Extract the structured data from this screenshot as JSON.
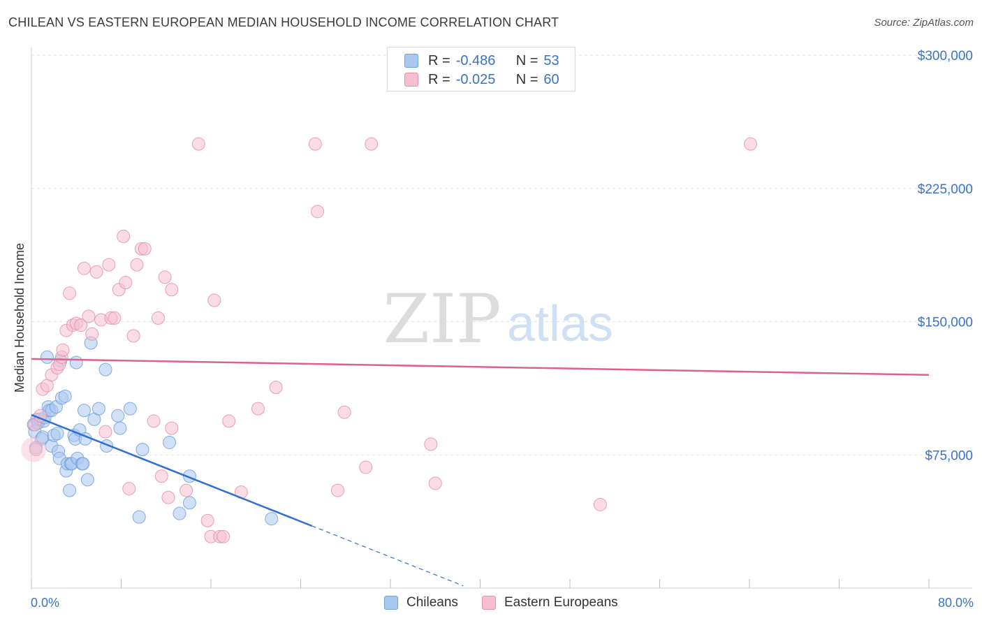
{
  "title": "CHILEAN VS EASTERN EUROPEAN MEDIAN HOUSEHOLD INCOME CORRELATION CHART",
  "source": "Source: ZipAtlas.com",
  "watermark": {
    "zip": "ZIP",
    "atlas": "atlas"
  },
  "colors": {
    "blue_fill": "#a9c8f0",
    "blue_stroke": "#6f9fdc",
    "blue_line": "#2f6fcf",
    "pink_fill": "#f6bfd0",
    "pink_stroke": "#e48fad",
    "pink_line": "#e0608c",
    "tick_label": "#3a72c8"
  },
  "legend": {
    "rows": [
      {
        "r_label": "R =",
        "r_value": "-0.486",
        "n_label": "N =",
        "n_value": "53"
      },
      {
        "r_label": "R =",
        "r_value": "-0.025",
        "n_label": "N =",
        "n_value": "60"
      }
    ]
  },
  "bottom_legend": {
    "series1": "Chileans",
    "series2": "Eastern Europeans"
  },
  "x_axis": {
    "min_label": "0.0%",
    "max_label": "80.0%"
  },
  "chart_data": {
    "type": "scatter",
    "title": "CHILEAN VS EASTERN EUROPEAN MEDIAN HOUSEHOLD INCOME CORRELATION CHART",
    "xlabel": "",
    "ylabel": "Median Household Income",
    "xlim": [
      0,
      80
    ],
    "ylim": [
      0,
      310000
    ],
    "y_ticks": [
      75000,
      150000,
      225000,
      300000
    ],
    "y_tick_labels": [
      "$75,000",
      "$150,000",
      "$225,000",
      "$300,000"
    ],
    "series": [
      {
        "name": "Chileans",
        "r": -0.486,
        "n": 53,
        "trend": {
          "x0": 0,
          "y0": 97500,
          "x1": 25,
          "y1": 35000,
          "dash_to_x": 38.5
        },
        "points": [
          [
            0.2,
            92000
          ],
          [
            0.3,
            88000
          ],
          [
            0.5,
            95000
          ],
          [
            0.6,
            93000
          ],
          [
            0.8,
            95000
          ],
          [
            0.9,
            84000
          ],
          [
            1.0,
            85000
          ],
          [
            1.1,
            94000
          ],
          [
            1.2,
            96000
          ],
          [
            1.4,
            130000
          ],
          [
            1.5,
            102000
          ],
          [
            1.6,
            100000
          ],
          [
            1.8,
            100000
          ],
          [
            1.8,
            80000
          ],
          [
            2.0,
            86000
          ],
          [
            2.2,
            102000
          ],
          [
            2.3,
            87000
          ],
          [
            2.4,
            77000
          ],
          [
            2.5,
            73000
          ],
          [
            2.6,
            128000
          ],
          [
            2.7,
            107000
          ],
          [
            3.0,
            108000
          ],
          [
            3.1,
            66000
          ],
          [
            3.2,
            70000
          ],
          [
            3.4,
            55000
          ],
          [
            3.5,
            70000
          ],
          [
            3.6,
            70000
          ],
          [
            3.8,
            86000
          ],
          [
            3.9,
            84000
          ],
          [
            4.0,
            127000
          ],
          [
            4.1,
            73000
          ],
          [
            4.3,
            89000
          ],
          [
            4.5,
            70000
          ],
          [
            4.6,
            70000
          ],
          [
            4.7,
            100000
          ],
          [
            4.8,
            84000
          ],
          [
            5.0,
            61000
          ],
          [
            5.3,
            138000
          ],
          [
            5.6,
            95000
          ],
          [
            6.0,
            101000
          ],
          [
            6.6,
            123000
          ],
          [
            6.7,
            80000
          ],
          [
            7.7,
            97000
          ],
          [
            7.9,
            90000
          ],
          [
            8.8,
            101000
          ],
          [
            9.6,
            40000
          ],
          [
            9.9,
            78000
          ],
          [
            12.3,
            82000
          ],
          [
            13.2,
            42000
          ],
          [
            14.1,
            63000
          ],
          [
            14.1,
            48000
          ],
          [
            21.4,
            39000
          ],
          [
            0.4,
            79000
          ]
        ]
      },
      {
        "name": "Eastern Europeans",
        "r": -0.025,
        "n": 60,
        "trend": {
          "x0": 0,
          "y0": 129000,
          "x1": 80,
          "y1": 120000
        },
        "points": [
          [
            0.3,
            92000
          ],
          [
            0.4,
            78000
          ],
          [
            0.8,
            97000
          ],
          [
            1.0,
            112000
          ],
          [
            1.4,
            114000
          ],
          [
            1.8,
            120000
          ],
          [
            2.3,
            124000
          ],
          [
            2.5,
            126000
          ],
          [
            2.7,
            130000
          ],
          [
            2.8,
            134000
          ],
          [
            3.1,
            145000
          ],
          [
            3.4,
            166000
          ],
          [
            3.7,
            148000
          ],
          [
            4.0,
            149000
          ],
          [
            4.4,
            148000
          ],
          [
            4.7,
            180000
          ],
          [
            5.1,
            153000
          ],
          [
            5.4,
            143000
          ],
          [
            5.8,
            178000
          ],
          [
            6.2,
            151000
          ],
          [
            6.6,
            88000
          ],
          [
            6.9,
            182000
          ],
          [
            7.1,
            152000
          ],
          [
            7.4,
            152000
          ],
          [
            7.8,
            168000
          ],
          [
            8.2,
            198000
          ],
          [
            8.4,
            172000
          ],
          [
            8.7,
            56000
          ],
          [
            9.1,
            142000
          ],
          [
            9.4,
            182000
          ],
          [
            9.8,
            191000
          ],
          [
            10.1,
            191000
          ],
          [
            10.9,
            94000
          ],
          [
            11.3,
            152000
          ],
          [
            11.6,
            63000
          ],
          [
            11.9,
            175000
          ],
          [
            12.2,
            51000
          ],
          [
            12.5,
            168000
          ],
          [
            12.5,
            90000
          ],
          [
            13.8,
            55000
          ],
          [
            14.9,
            250000
          ],
          [
            15.7,
            38000
          ],
          [
            16.0,
            29000
          ],
          [
            16.3,
            162000
          ],
          [
            16.8,
            29000
          ],
          [
            17.1,
            29000
          ],
          [
            17.6,
            94000
          ],
          [
            18.7,
            54000
          ],
          [
            20.2,
            101000
          ],
          [
            21.8,
            113000
          ],
          [
            25.3,
            250000
          ],
          [
            25.5,
            212000
          ],
          [
            27.3,
            55000
          ],
          [
            27.9,
            99000
          ],
          [
            29.8,
            68000
          ],
          [
            30.3,
            250000
          ],
          [
            35.6,
            81000
          ],
          [
            36.0,
            59000
          ],
          [
            50.7,
            47000
          ],
          [
            64.1,
            250000
          ]
        ]
      }
    ]
  }
}
